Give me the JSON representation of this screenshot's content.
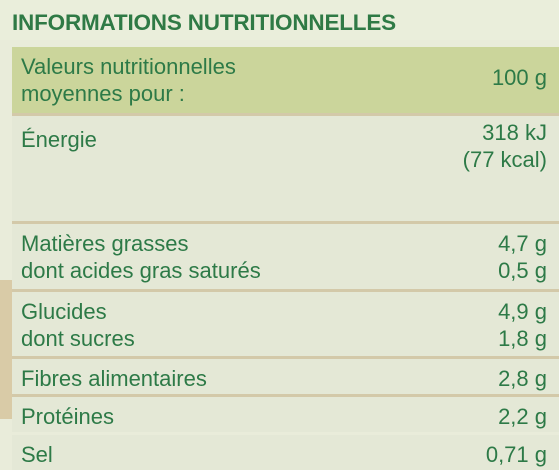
{
  "title": "INFORMATIONS NUTRITIONNELLES",
  "header": {
    "label_line1": "Valeurs nutritionnelles",
    "label_line2": "moyennes pour :",
    "value": "100 g"
  },
  "rows": [
    {
      "label_line1": "Énergie",
      "value_line1": "318 kJ",
      "value_line2": "(77 kcal)"
    },
    {
      "label_line1": "Matières grasses",
      "label_line2": "dont acides gras saturés",
      "value_line1": "4,7 g",
      "value_line2": "0,5 g"
    },
    {
      "label_line1": "Glucides",
      "label_line2": "dont sucres",
      "value_line1": "4,9 g",
      "value_line2": "1,8 g"
    },
    {
      "label_line1": "Fibres alimentaires",
      "value_line1": "2,8 g"
    },
    {
      "label_line1": "Protéines",
      "value_line1": "2,2 g"
    },
    {
      "label_line1": "Sel",
      "value_line1": "0,71 g"
    }
  ]
}
